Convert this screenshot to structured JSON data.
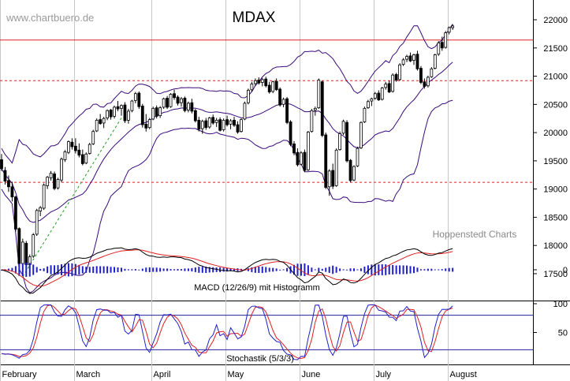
{
  "header": {
    "watermark": "www.chartbuero.de",
    "title": "MDAX"
  },
  "credit": "Hoppenstedt Charts",
  "chart_data": [
    {
      "type": "candlestick",
      "title": "MDAX",
      "ylim": [
        17150,
        22350
      ],
      "y_ticks": [
        17500,
        18000,
        18500,
        19000,
        19500,
        20000,
        20500,
        21000,
        21500,
        22000
      ],
      "months": [
        "February",
        "March",
        "April",
        "May",
        "June",
        "July",
        "August"
      ],
      "x_range": [
        0,
        141
      ],
      "month_starts": [
        0,
        21,
        43,
        64,
        85,
        106,
        127
      ],
      "ohlc": [
        [
          19520,
          19620,
          19320,
          19360
        ],
        [
          19330,
          19390,
          19080,
          19140
        ],
        [
          19150,
          19240,
          18950,
          19040
        ],
        [
          19040,
          19130,
          18780,
          18860
        ],
        [
          18860,
          18880,
          18250,
          18290
        ],
        [
          18300,
          18320,
          17620,
          17680
        ],
        [
          17680,
          18120,
          17600,
          18060
        ],
        [
          18040,
          18080,
          17560,
          17660
        ],
        [
          17660,
          17840,
          17480,
          17800
        ],
        [
          17810,
          18220,
          17780,
          18190
        ],
        [
          18200,
          18650,
          18170,
          18620
        ],
        [
          18610,
          18700,
          18520,
          18670
        ],
        [
          18660,
          19100,
          18630,
          19070
        ],
        [
          19060,
          19230,
          19000,
          19210
        ],
        [
          19200,
          19320,
          19150,
          19280
        ],
        [
          19270,
          19310,
          18980,
          19010
        ],
        [
          19020,
          19200,
          18990,
          19170
        ],
        [
          19160,
          19560,
          19120,
          19530
        ],
        [
          19520,
          19690,
          19480,
          19660
        ],
        [
          19650,
          19860,
          19620,
          19840
        ],
        [
          19830,
          19900,
          19700,
          19750
        ],
        [
          19760,
          19900,
          19630,
          19680
        ],
        [
          19690,
          19810,
          19560,
          19600
        ],
        [
          19610,
          19700,
          19420,
          19450
        ],
        [
          19460,
          19650,
          19440,
          19620
        ],
        [
          19630,
          19820,
          19610,
          19790
        ],
        [
          19800,
          20050,
          19780,
          20020
        ],
        [
          20030,
          20250,
          20010,
          20220
        ],
        [
          20230,
          20330,
          20140,
          20160
        ],
        [
          20170,
          20280,
          20080,
          20250
        ],
        [
          20260,
          20410,
          20220,
          20390
        ],
        [
          20400,
          20420,
          20230,
          20280
        ],
        [
          20290,
          20480,
          20250,
          20450
        ],
        [
          20460,
          20560,
          20380,
          20420
        ],
        [
          20430,
          20500,
          20300,
          20480
        ],
        [
          20490,
          20540,
          20170,
          20210
        ],
        [
          20220,
          20420,
          20160,
          20380
        ],
        [
          20390,
          20580,
          20360,
          20560
        ],
        [
          20570,
          20720,
          20520,
          20690
        ],
        [
          20700,
          20730,
          20420,
          20460
        ],
        [
          20470,
          20510,
          20090,
          20140
        ],
        [
          20150,
          20330,
          20020,
          20080
        ],
        [
          20090,
          20260,
          20060,
          20230
        ],
        [
          20240,
          20460,
          20220,
          20430
        ],
        [
          20440,
          20480,
          20250,
          20290
        ],
        [
          20300,
          20470,
          20260,
          20440
        ],
        [
          20450,
          20620,
          20420,
          20600
        ],
        [
          20610,
          20650,
          20420,
          20450
        ],
        [
          20460,
          20700,
          20440,
          20680
        ],
        [
          20690,
          20760,
          20580,
          20620
        ],
        [
          20630,
          20660,
          20480,
          20520
        ],
        [
          20530,
          20630,
          20460,
          20600
        ],
        [
          20610,
          20640,
          20360,
          20390
        ],
        [
          20400,
          20550,
          20360,
          20520
        ],
        [
          20530,
          20600,
          20340,
          20380
        ],
        [
          20390,
          20420,
          20180,
          20210
        ],
        [
          20220,
          20280,
          20020,
          20060
        ],
        [
          20070,
          20230,
          19980,
          20200
        ],
        [
          20210,
          20260,
          20050,
          20090
        ],
        [
          20100,
          20280,
          20070,
          20260
        ],
        [
          20270,
          20320,
          20140,
          20170
        ],
        [
          20180,
          20260,
          20100,
          20220
        ],
        [
          20230,
          20270,
          20020,
          20040
        ],
        [
          20050,
          20250,
          20020,
          20220
        ],
        [
          20230,
          20300,
          20110,
          20140
        ],
        [
          20150,
          20240,
          20060,
          20210
        ],
        [
          20220,
          20280,
          20100,
          20130
        ],
        [
          20140,
          20200,
          19980,
          20010
        ],
        [
          20020,
          20250,
          20000,
          20230
        ],
        [
          20240,
          20550,
          20220,
          20520
        ],
        [
          20530,
          20780,
          20500,
          20750
        ],
        [
          20760,
          20900,
          20720,
          20860
        ],
        [
          20870,
          20960,
          20830,
          20920
        ],
        [
          20930,
          20980,
          20850,
          20880
        ],
        [
          20890,
          20970,
          20820,
          20940
        ],
        [
          20950,
          20990,
          20800,
          20830
        ],
        [
          20840,
          20900,
          20690,
          20720
        ],
        [
          20730,
          20920,
          20700,
          20900
        ],
        [
          20910,
          20960,
          20740,
          20760
        ],
        [
          20770,
          20800,
          20460,
          20490
        ],
        [
          20500,
          20620,
          20450,
          20590
        ],
        [
          20600,
          20630,
          20150,
          20180
        ],
        [
          20190,
          20220,
          19760,
          19790
        ],
        [
          19800,
          19850,
          19600,
          19640
        ],
        [
          19650,
          19720,
          19400,
          19430
        ],
        [
          19440,
          19670,
          19420,
          19640
        ],
        [
          19650,
          19700,
          19300,
          19330
        ],
        [
          19340,
          20030,
          19320,
          20010
        ],
        [
          20020,
          20420,
          20000,
          20390
        ],
        [
          20400,
          20460,
          20300,
          20430
        ],
        [
          20440,
          20960,
          20420,
          20930
        ],
        [
          20900,
          20920,
          19920,
          19950
        ],
        [
          19960,
          20000,
          19000,
          19030
        ],
        [
          19040,
          19350,
          18880,
          19320
        ],
        [
          19330,
          19450,
          19000,
          19050
        ],
        [
          19060,
          19720,
          19040,
          19690
        ],
        [
          19700,
          20020,
          19680,
          19980
        ],
        [
          19990,
          20230,
          19960,
          20200
        ],
        [
          20180,
          20220,
          19470,
          19500
        ],
        [
          19510,
          19530,
          19120,
          19150
        ],
        [
          19160,
          19420,
          19140,
          19400
        ],
        [
          19410,
          19750,
          19390,
          19720
        ],
        [
          19730,
          20200,
          19710,
          20180
        ],
        [
          20190,
          20460,
          20170,
          20430
        ],
        [
          20440,
          20580,
          20420,
          20550
        ],
        [
          20560,
          20620,
          20470,
          20600
        ],
        [
          20610,
          20720,
          20580,
          20690
        ],
        [
          20700,
          20750,
          20560,
          20580
        ],
        [
          20590,
          20810,
          20570,
          20790
        ],
        [
          20800,
          20900,
          20760,
          20860
        ],
        [
          20870,
          20920,
          20700,
          20720
        ],
        [
          20730,
          21050,
          20710,
          21020
        ],
        [
          21030,
          21060,
          20900,
          20930
        ],
        [
          20940,
          21230,
          20920,
          21200
        ],
        [
          21210,
          21320,
          21180,
          21290
        ],
        [
          21300,
          21380,
          21250,
          21350
        ],
        [
          21360,
          21420,
          21250,
          21270
        ],
        [
          21280,
          21400,
          21200,
          21380
        ],
        [
          21390,
          21450,
          21100,
          21130
        ],
        [
          21140,
          21180,
          20860,
          20890
        ],
        [
          20900,
          20960,
          20780,
          20820
        ],
        [
          20830,
          21010,
          20800,
          20980
        ],
        [
          20990,
          21160,
          20970,
          21130
        ],
        [
          21140,
          21400,
          21120,
          21380
        ],
        [
          21390,
          21620,
          21360,
          21590
        ],
        [
          21600,
          21700,
          21450,
          21500
        ],
        [
          21510,
          21800,
          21490,
          21770
        ],
        [
          21780,
          21880,
          21740,
          21860
        ],
        [
          21860,
          21920,
          21820,
          21890
        ]
      ],
      "resistance_lines": [
        {
          "value": 21640,
          "style": "solid",
          "color": "#e02020"
        },
        {
          "value": 20920,
          "style": "dashed",
          "color": "#e02020"
        },
        {
          "value": 19120,
          "style": "dashed",
          "color": "#e02020"
        }
      ],
      "bollinger_period": 20,
      "bollinger_color": "#3a0a7a",
      "trendline_color": "#1aa01a"
    },
    {
      "type": "line",
      "title": "MACD (12/26/9) mit Histogramm",
      "y_ticks": [
        0
      ],
      "series": [
        {
          "name": "MACD",
          "color": "#000000"
        },
        {
          "name": "Signal",
          "color": "#e02020"
        },
        {
          "name": "Histogramm",
          "color": "#2020c8"
        }
      ]
    },
    {
      "type": "line",
      "title": "Stochastik (5/3/3)",
      "ylim": [
        0,
        100
      ],
      "y_ticks": [
        50,
        100
      ],
      "levels": [
        80,
        20
      ],
      "series": [
        {
          "name": "%K",
          "color": "#2020c8"
        },
        {
          "name": "%D",
          "color": "#e02020"
        }
      ]
    }
  ]
}
